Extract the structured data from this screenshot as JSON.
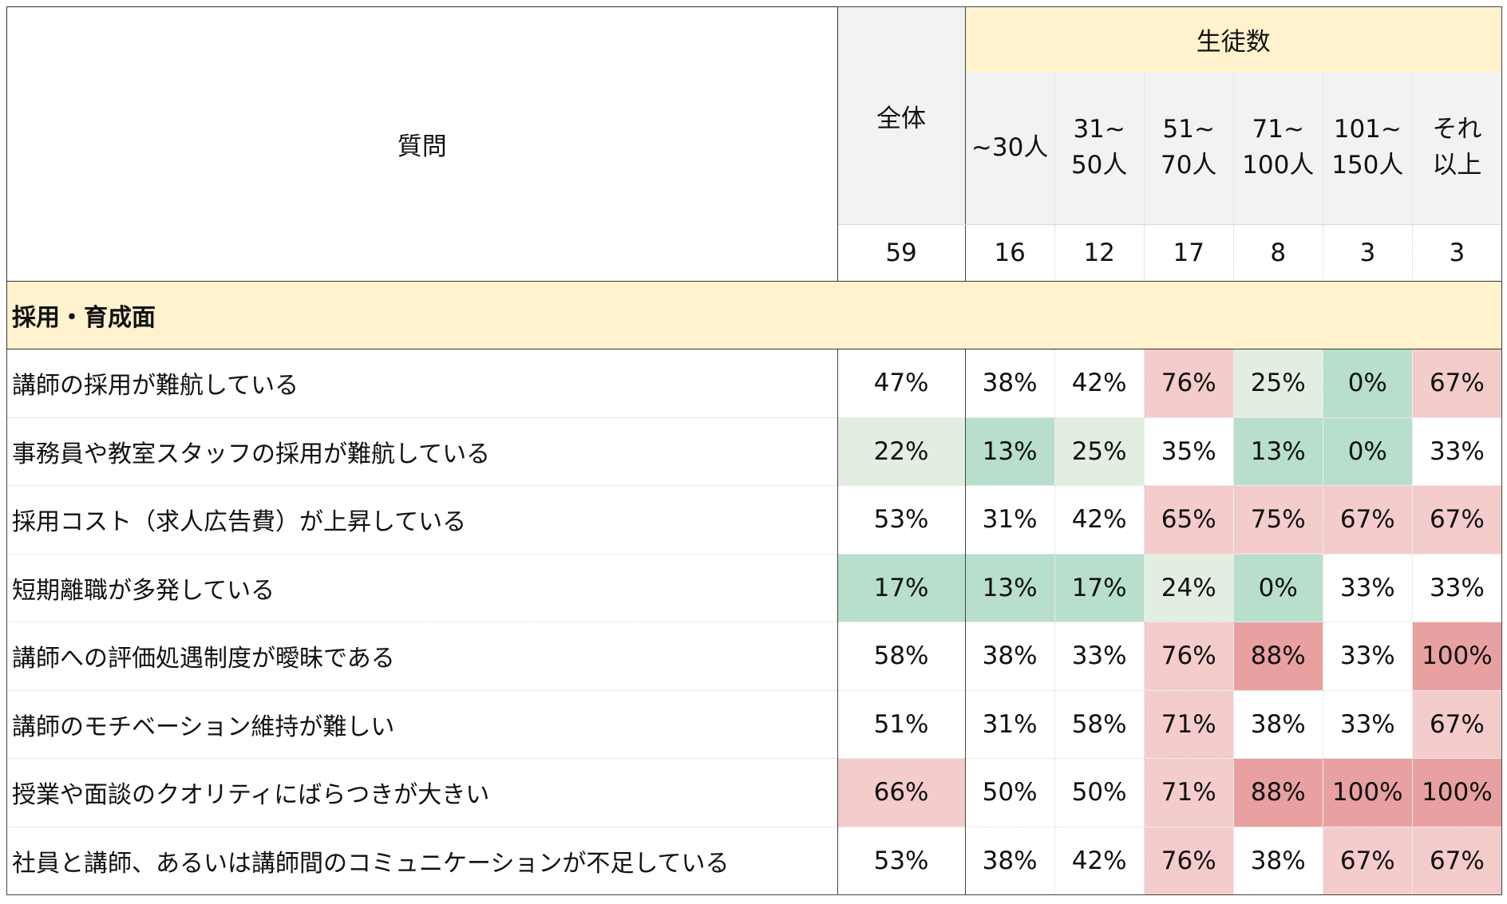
{
  "header": {
    "question_label": "質問",
    "overall_label": "全体",
    "group_label": "生徒数",
    "group_columns": [
      "~30人",
      "31~\n50人",
      "51~\n70人",
      "71~\n100人",
      "101~\n150人",
      "それ\n以上"
    ],
    "counts": [
      "59",
      "16",
      "12",
      "17",
      "8",
      "3",
      "3"
    ]
  },
  "section": {
    "title": "採用・育成面"
  },
  "colors": {
    "white": "#ffffff",
    "green_light": "#e2efe0",
    "green_mid": "#b7dfcb",
    "pink_light": "#f4cccc",
    "pink_dark": "#e8a0a0",
    "header_gray": "#f2f2f2",
    "header_yellow": "#fff2cc"
  },
  "rows": [
    {
      "q": "講師の採用が難航している",
      "v": [
        "47%",
        "38%",
        "42%",
        "76%",
        "25%",
        "0%",
        "67%"
      ],
      "c": [
        "white",
        "white",
        "white",
        "pink_light",
        "green_light",
        "green_mid",
        "pink_light"
      ]
    },
    {
      "q": "事務員や教室スタッフの採用が難航している",
      "v": [
        "22%",
        "13%",
        "25%",
        "35%",
        "13%",
        "0%",
        "33%"
      ],
      "c": [
        "green_light",
        "green_mid",
        "green_light",
        "white",
        "green_mid",
        "green_mid",
        "white"
      ]
    },
    {
      "q": "採用コスト（求人広告費）が上昇している",
      "v": [
        "53%",
        "31%",
        "42%",
        "65%",
        "75%",
        "67%",
        "67%"
      ],
      "c": [
        "white",
        "white",
        "white",
        "pink_light",
        "pink_light",
        "pink_light",
        "pink_light"
      ]
    },
    {
      "q": "短期離職が多発している",
      "v": [
        "17%",
        "13%",
        "17%",
        "24%",
        "0%",
        "33%",
        "33%"
      ],
      "c": [
        "green_mid",
        "green_mid",
        "green_mid",
        "green_light",
        "green_mid",
        "white",
        "white"
      ]
    },
    {
      "q": "講師への評価処遇制度が曖昧である",
      "v": [
        "58%",
        "38%",
        "33%",
        "76%",
        "88%",
        "33%",
        "100%"
      ],
      "c": [
        "white",
        "white",
        "white",
        "pink_light",
        "pink_dark",
        "white",
        "pink_dark"
      ]
    },
    {
      "q": "講師のモチベーション維持が難しい",
      "v": [
        "51%",
        "31%",
        "58%",
        "71%",
        "38%",
        "33%",
        "67%"
      ],
      "c": [
        "white",
        "white",
        "white",
        "pink_light",
        "white",
        "white",
        "pink_light"
      ]
    },
    {
      "q": "授業や面談のクオリティにばらつきが大きい",
      "v": [
        "66%",
        "50%",
        "50%",
        "71%",
        "88%",
        "100%",
        "100%"
      ],
      "c": [
        "pink_light",
        "white",
        "white",
        "pink_light",
        "pink_dark",
        "pink_dark",
        "pink_dark"
      ]
    },
    {
      "q": "社員と講師、あるいは講師間のコミュニケーションが不足している",
      "v": [
        "53%",
        "38%",
        "42%",
        "76%",
        "38%",
        "67%",
        "67%"
      ],
      "c": [
        "white",
        "white",
        "white",
        "pink_light",
        "white",
        "pink_light",
        "pink_light"
      ]
    }
  ]
}
